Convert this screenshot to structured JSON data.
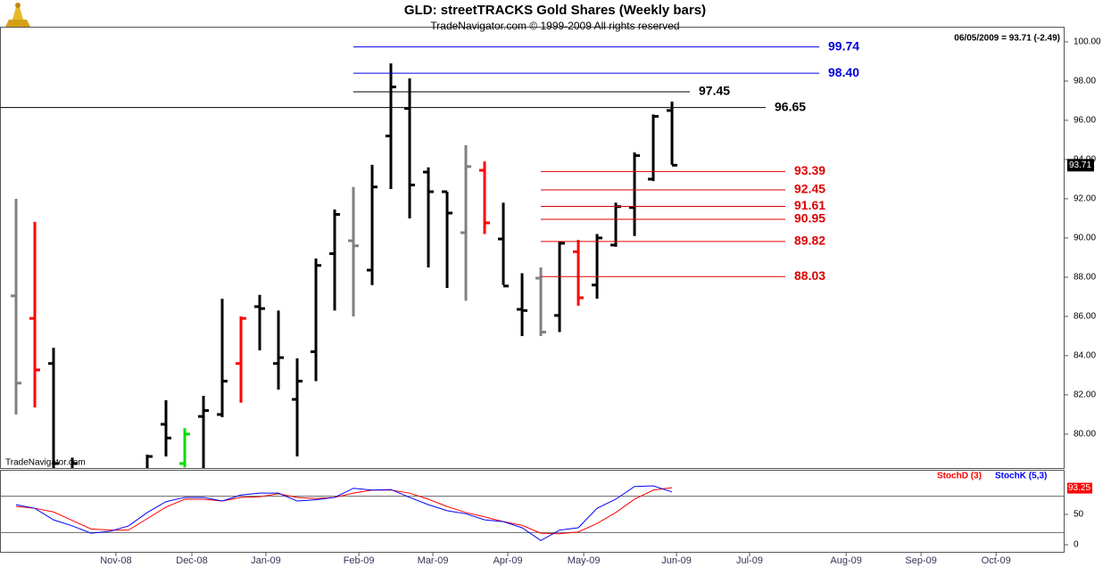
{
  "chart_data": [
    {
      "type": "ohlc",
      "title": "GLD:  streetTRACKS Gold Shares  (Weekly bars)",
      "subtitle": "TradeNavigator.com © 1999-2009 All rights reserved",
      "status": "06/05/2009 = 93.71 (-2.49)",
      "watermark": "TradeNavigator.com",
      "last_price": 93.71,
      "ylim": [
        78.27,
        100.77
      ],
      "yticks": [
        {
          "value": 80,
          "label": "80.00"
        },
        {
          "value": 82,
          "label": "82.00"
        },
        {
          "value": 84,
          "label": "84.00"
        },
        {
          "value": 86,
          "label": "86.00"
        },
        {
          "value": 88,
          "label": "88.00"
        },
        {
          "value": 90,
          "label": "90.00"
        },
        {
          "value": 92,
          "label": "92.00"
        },
        {
          "value": 94,
          "label": "94.00"
        },
        {
          "value": 96,
          "label": "96.00"
        },
        {
          "value": 98,
          "label": "98.00"
        },
        {
          "value": 100,
          "label": "100.00"
        }
      ],
      "xlim": [
        -0.857,
        55.9
      ],
      "xticks": [
        {
          "value": 5.33,
          "label": "Nov-08"
        },
        {
          "value": 9.38,
          "label": "Dec-08"
        },
        {
          "value": 13.33,
          "label": "Jan-09"
        },
        {
          "value": 18.29,
          "label": "Feb-09"
        },
        {
          "value": 22.24,
          "label": "Mar-09"
        },
        {
          "value": 26.24,
          "label": "Apr-09"
        },
        {
          "value": 30.29,
          "label": "May-09"
        },
        {
          "value": 35.24,
          "label": "Jun-09"
        },
        {
          "value": 39.14,
          "label": "Jul-09"
        },
        {
          "value": 44.29,
          "label": "Aug-09"
        },
        {
          "value": 48.29,
          "label": "Sep-09"
        },
        {
          "value": 52.29,
          "label": "Oct-09"
        }
      ],
      "series": {
        "open": [
          87.05,
          85.9,
          83.6,
          77.5,
          76.5,
          76.8,
          77.0,
          77.5,
          80.5,
          78.5,
          80.9,
          81.0,
          83.6,
          86.5,
          83.6,
          81.77,
          84.2,
          89.2,
          89.86,
          88.36,
          95.2,
          96.6,
          93.36,
          92.36,
          90.27,
          93.45,
          89.95,
          86.36,
          87.95,
          86.05,
          89.3,
          87.6,
          89.64,
          91.55,
          93.0,
          96.5
        ],
        "high": [
          92.0,
          90.82,
          84.4,
          78.8,
          77.5,
          78.0,
          78.2,
          78.95,
          81.73,
          80.3,
          81.95,
          86.9,
          86.0,
          87.1,
          86.3,
          83.86,
          88.95,
          91.45,
          92.6,
          93.73,
          98.9,
          98.14,
          93.6,
          92.36,
          94.73,
          93.9,
          91.8,
          88.2,
          88.5,
          89.82,
          89.9,
          90.2,
          91.8,
          94.36,
          96.3,
          96.95
        ],
        "low": [
          81.0,
          81.36,
          77.0,
          76.5,
          75.5,
          76.0,
          76.2,
          77.0,
          78.86,
          78.3,
          78.0,
          80.86,
          81.6,
          84.27,
          82.27,
          78.86,
          82.7,
          86.3,
          86.0,
          87.6,
          92.5,
          91.0,
          88.5,
          87.45,
          86.8,
          90.2,
          87.6,
          85.0,
          85.0,
          85.2,
          86.55,
          86.9,
          89.55,
          90.1,
          92.9,
          93.73
        ],
        "close": [
          82.6,
          83.27,
          78.5,
          78.5,
          77.0,
          77.5,
          77.8,
          78.86,
          79.8,
          80.0,
          81.2,
          82.7,
          85.9,
          86.4,
          83.9,
          82.7,
          88.6,
          91.2,
          89.6,
          92.6,
          97.7,
          92.7,
          92.36,
          91.27,
          93.64,
          90.77,
          87.55,
          86.3,
          85.2,
          89.73,
          86.95,
          90.0,
          91.6,
          94.2,
          96.2,
          93.71
        ],
        "colors": [
          "#808080",
          "#ff0000",
          "#000000",
          "#000000",
          "#000000",
          "#000000",
          "#000000",
          "#000000",
          "#000000",
          "#00dd00",
          "#000000",
          "#000000",
          "#ff0000",
          "#000000",
          "#000000",
          "#000000",
          "#000000",
          "#000000",
          "#808080",
          "#000000",
          "#000000",
          "#000000",
          "#000000",
          "#000000",
          "#808080",
          "#ff0000",
          "#000000",
          "#000000",
          "#808080",
          "#000000",
          "#ff0000",
          "#000000",
          "#000000",
          "#000000",
          "#000000",
          "#000000"
        ]
      },
      "levels": [
        {
          "value": 99.74,
          "color": "#0000dd"
        },
        {
          "value": {
            "value": 98.4,
            "label": "98.40"
          },
          "color": "#0000dd"
        },
        {
          "value": 97.45,
          "color": "#000000"
        },
        {
          "value": 96.65,
          "color": "#000000"
        },
        {
          "value": 93.39,
          "color": "#dd0000"
        },
        {
          "value": 92.45,
          "color": "#dd0000"
        },
        {
          "value": 91.61,
          "color": "#dd0000"
        },
        {
          "value": 90.95,
          "color": "#dd0000"
        },
        {
          "value": 89.82,
          "color": "#dd0000"
        },
        {
          "value": 88.03,
          "color": "#dd0000"
        }
      ]
    },
    {
      "type": "line",
      "ylim": [
        -13.2,
        122
      ],
      "yticks": [
        0,
        50
      ],
      "reference_lines": [
        20,
        80
      ],
      "last_value": 93.25,
      "series": [
        {
          "name": "StochD (3)",
          "color": "#ff0000",
          "values": [
            63,
            60,
            54,
            40,
            26,
            24,
            24,
            43,
            62,
            75,
            75,
            72,
            78,
            79,
            84,
            78,
            76,
            78,
            85,
            90,
            90,
            85,
            75,
            63,
            53,
            46,
            38,
            32,
            19,
            18,
            21,
            35,
            53,
            75,
            90,
            94
          ]
        },
        {
          "name": "StochK (5,3)",
          "color": "#0000ff",
          "values": [
            66,
            60,
            41,
            31,
            19,
            22,
            31,
            53,
            71,
            78,
            78,
            72,
            82,
            85,
            85,
            72,
            74,
            78,
            93,
            90,
            91,
            78,
            66,
            56,
            51,
            41,
            38,
            28,
            7,
            24,
            28,
            60,
            75,
            96,
            97,
            87
          ]
        }
      ]
    }
  ]
}
